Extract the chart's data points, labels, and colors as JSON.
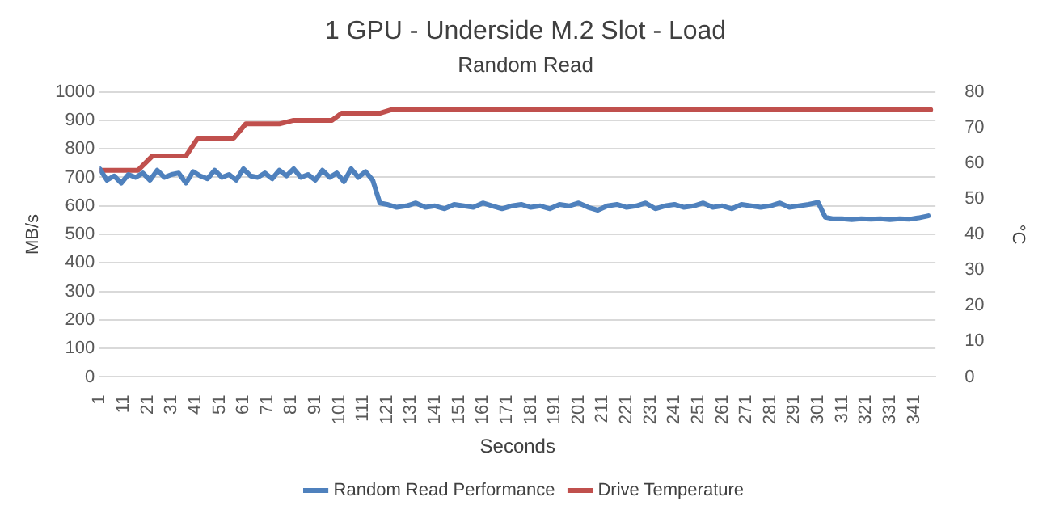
{
  "chart_data": {
    "type": "line",
    "title": "1 GPU - Underside M.2 Slot - Load",
    "subtitle": "Random Read",
    "xlabel": "Seconds",
    "ylabel": "MB/s",
    "y2label": "°C",
    "xlim": [
      1,
      350
    ],
    "xticks": [
      1,
      11,
      21,
      31,
      41,
      51,
      61,
      71,
      81,
      91,
      101,
      111,
      121,
      131,
      141,
      151,
      161,
      171,
      181,
      191,
      201,
      211,
      221,
      231,
      241,
      251,
      261,
      271,
      281,
      291,
      301,
      311,
      321,
      331,
      341
    ],
    "ylim": [
      0,
      1000
    ],
    "yticks": [
      0,
      100,
      200,
      300,
      400,
      500,
      600,
      700,
      800,
      900,
      1000
    ],
    "y2lim": [
      0,
      80
    ],
    "y2ticks": [
      0,
      10,
      20,
      30,
      40,
      50,
      60,
      70,
      80
    ],
    "grid": "y",
    "legend": "bottom",
    "marker": "none",
    "line_style": "solid",
    "series": [
      {
        "name": "Random Read Performance",
        "color": "#4f81bd",
        "x": [
          1,
          4,
          7,
          10,
          13,
          16,
          19,
          22,
          25,
          28,
          31,
          34,
          37,
          40,
          43,
          46,
          49,
          52,
          55,
          58,
          61,
          64,
          67,
          70,
          73,
          76,
          79,
          82,
          85,
          88,
          91,
          94,
          97,
          100,
          103,
          106,
          109,
          112,
          115,
          118,
          121,
          125,
          129,
          133,
          137,
          141,
          145,
          149,
          153,
          157,
          161,
          165,
          169,
          173,
          177,
          181,
          185,
          189,
          193,
          197,
          201,
          205,
          209,
          213,
          217,
          221,
          225,
          229,
          233,
          237,
          241,
          245,
          249,
          253,
          257,
          261,
          265,
          269,
          273,
          277,
          281,
          285,
          289,
          293,
          297,
          301,
          304,
          307,
          311,
          315,
          319,
          323,
          327,
          331,
          335,
          339,
          343,
          347
        ],
        "values": [
          730,
          690,
          705,
          680,
          710,
          700,
          715,
          690,
          725,
          700,
          710,
          715,
          680,
          720,
          705,
          695,
          725,
          700,
          710,
          690,
          730,
          705,
          700,
          715,
          695,
          725,
          705,
          730,
          700,
          710,
          690,
          725,
          700,
          715,
          685,
          730,
          700,
          720,
          690,
          610,
          605,
          595,
          600,
          610,
          595,
          600,
          590,
          605,
          600,
          595,
          610,
          600,
          590,
          600,
          605,
          595,
          600,
          590,
          605,
          600,
          610,
          595,
          585,
          600,
          605,
          595,
          600,
          610,
          590,
          600,
          605,
          595,
          600,
          610,
          595,
          600,
          590,
          605,
          600,
          595,
          600,
          610,
          595,
          600,
          605,
          612,
          560,
          555,
          555,
          552,
          555,
          553,
          555,
          552,
          555,
          553,
          558,
          565
        ]
      },
      {
        "name": "Drive Temperature",
        "color": "#c0504d",
        "axis": "y2",
        "x": [
          1,
          17,
          23,
          37,
          42,
          57,
          62,
          76,
          82,
          98,
          102,
          118,
          123,
          348
        ],
        "values": [
          58,
          58,
          62,
          62,
          67,
          67,
          71,
          71,
          72,
          72,
          74,
          74,
          75,
          75
        ]
      }
    ]
  }
}
